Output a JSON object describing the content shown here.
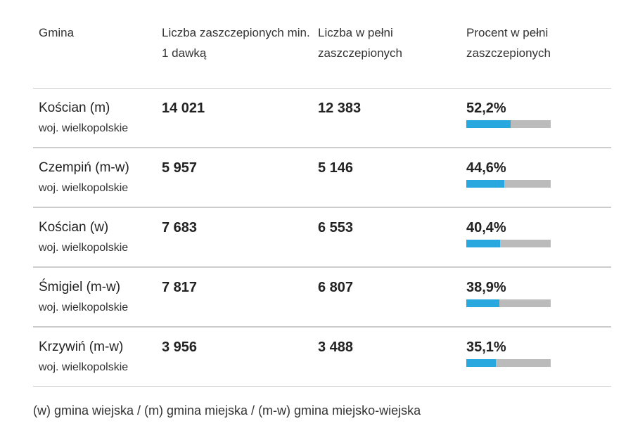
{
  "headers": [
    "Gmina",
    "Liczba zaszczepionych min. 1 dawką",
    "Liczba w pełni zaszczepionych",
    "Procent w pełni zaszczepionych"
  ],
  "rows": [
    {
      "name": "Kościan (m)",
      "region": "woj. wielkopolskie",
      "min1": "14 021",
      "full": "12 383",
      "pct": "52,2%",
      "pct_value": 52.2
    },
    {
      "name": "Czempiń (m-w)",
      "region": "woj. wielkopolskie",
      "min1": "5 957",
      "full": "5 146",
      "pct": "44,6%",
      "pct_value": 44.6
    },
    {
      "name": "Kościan (w)",
      "region": "woj. wielkopolskie",
      "min1": "7 683",
      "full": "6 553",
      "pct": "40,4%",
      "pct_value": 40.4
    },
    {
      "name": "Śmigiel (m-w)",
      "region": "woj. wielkopolskie",
      "min1": "7 817",
      "full": "6 807",
      "pct": "38,9%",
      "pct_value": 38.9
    },
    {
      "name": "Krzywiń (m-w)",
      "region": "woj. wielkopolskie",
      "min1": "3 956",
      "full": "3 488",
      "pct": "35,1%",
      "pct_value": 35.1
    }
  ],
  "footnote": "(w) gmina wiejska / (m) gmina miejska / (m-w) gmina miejsko-wiejska",
  "colors": {
    "bar_fill": "#29a8e0",
    "bar_track": "#bbbbbb"
  }
}
